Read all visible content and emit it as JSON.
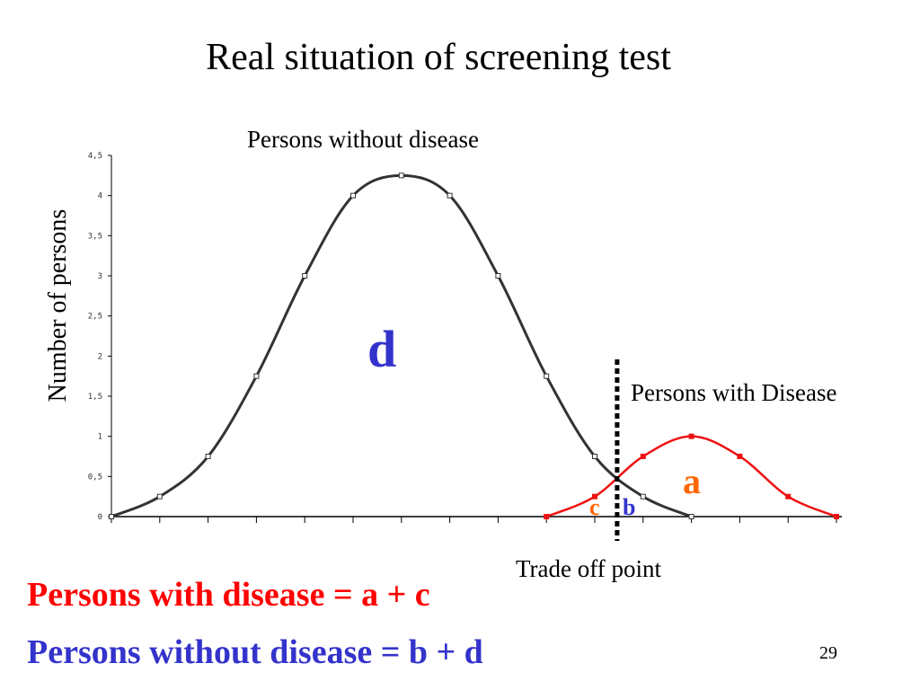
{
  "slide": {
    "title": "Real situation of screening test",
    "page_number": "29"
  },
  "labels": {
    "without_disease": "Persons without disease",
    "with_disease": "Persons with Disease",
    "region_d": "d",
    "region_a": "a",
    "region_c": "c",
    "region_b": "b",
    "trade_off": "Trade off point"
  },
  "equations": {
    "with_disease": "Persons with disease = a + c",
    "without_disease": "Persons without disease = b + d"
  },
  "colors": {
    "without_disease_curve": "#333333",
    "with_disease_curve": "#ee1111",
    "region_d": "#3333cc",
    "region_a": "#ff6600",
    "region_c": "#ff6600",
    "region_b": "#3333cc",
    "eq_with": "#ff0000",
    "eq_without": "#3333cc",
    "cutoff_line": "#000000"
  },
  "chart_data": {
    "type": "line",
    "title": "",
    "ylabel": "Number of persons",
    "xlabel": "",
    "ylim": [
      0,
      4.5
    ],
    "y_ticks": [
      "0",
      "0,5",
      "1",
      "1,5",
      "2",
      "2,5",
      "3",
      "3,5",
      "4",
      "4,5"
    ],
    "x_ticks_count": 16,
    "grid": false,
    "legend": "none",
    "cutoff_x": 10.5,
    "series": [
      {
        "name": "Persons without disease",
        "x": [
          0,
          1,
          2,
          3,
          4,
          5,
          6,
          7,
          8,
          9,
          10,
          11,
          12
        ],
        "values": [
          0,
          0.25,
          0.75,
          1.75,
          3,
          4,
          4.25,
          4,
          3,
          1.75,
          0.75,
          0.25,
          0
        ],
        "marker": "open-square"
      },
      {
        "name": "Persons with Disease",
        "x": [
          9,
          10,
          11,
          12,
          13,
          14,
          15
        ],
        "values": [
          0,
          0.25,
          0.75,
          1,
          0.75,
          0.25,
          0
        ],
        "marker": "filled-square"
      }
    ]
  }
}
